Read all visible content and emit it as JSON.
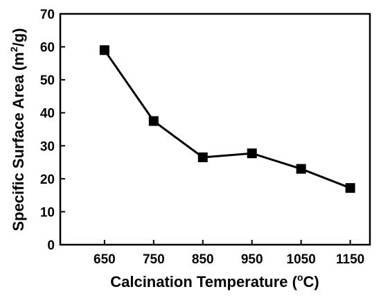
{
  "chart_data": {
    "type": "line",
    "xlabel": "Calcination Temperature (",
    "xlabel_sup": "o",
    "xlabel_end": "C)",
    "ylabel": "Specific Surface Area (m",
    "ylabel_sup": "2",
    "ylabel_end": "/g)",
    "x": [
      650,
      750,
      850,
      950,
      1050,
      1150
    ],
    "y": [
      59.0,
      37.5,
      26.5,
      27.7,
      23.0,
      17.2
    ],
    "xlim": [
      560,
      1190
    ],
    "ylim": [
      0,
      70
    ],
    "xticks": [
      650,
      750,
      850,
      950,
      1050,
      1150
    ],
    "yticks": [
      0,
      10,
      20,
      30,
      40,
      50,
      60,
      70
    ],
    "marker": "square",
    "line_color": "#000000",
    "grid": false
  }
}
